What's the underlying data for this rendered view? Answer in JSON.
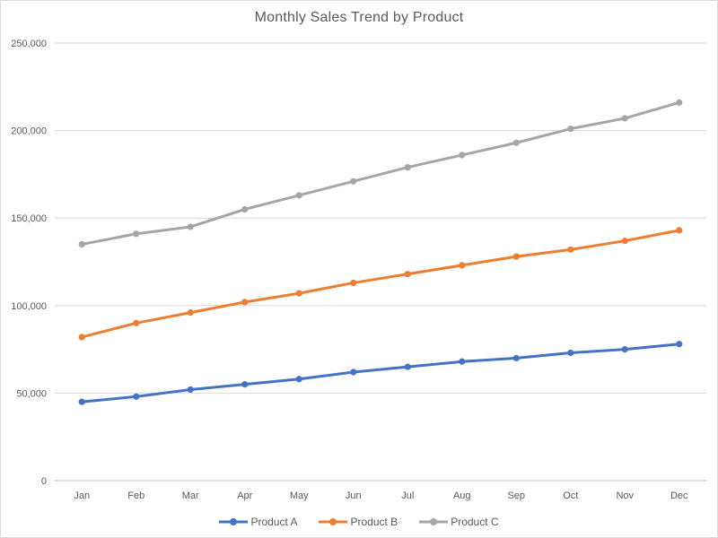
{
  "chart_data": {
    "type": "line",
    "title": "Monthly Sales Trend by Product",
    "xlabel": "",
    "ylabel": "",
    "categories": [
      "Jan",
      "Feb",
      "Mar",
      "Apr",
      "May",
      "Jun",
      "Jul",
      "Aug",
      "Sep",
      "Oct",
      "Nov",
      "Dec"
    ],
    "series": [
      {
        "name": "Product A",
        "color": "#4472C4",
        "values": [
          45000,
          48000,
          52000,
          55000,
          58000,
          62000,
          65000,
          68000,
          70000,
          73000,
          75000,
          78000
        ]
      },
      {
        "name": "Product B",
        "color": "#ED7D31",
        "values": [
          82000,
          90000,
          96000,
          102000,
          107000,
          113000,
          118000,
          123000,
          128000,
          132000,
          137000,
          143000
        ]
      },
      {
        "name": "Product C",
        "color": "#A5A5A5",
        "values": [
          135000,
          141000,
          145000,
          155000,
          163000,
          171000,
          179000,
          186000,
          193000,
          201000,
          207000,
          216000
        ]
      }
    ],
    "ylim": [
      0,
      250000
    ],
    "yticks": {
      "values": [
        0,
        50000,
        100000,
        150000,
        200000,
        250000
      ],
      "labels": [
        "0",
        "50,000",
        "100,000",
        "150,000",
        "200,000",
        "250,000"
      ]
    },
    "grid": "horizontal",
    "legend_position": "bottom-center",
    "marker": "circle",
    "line_width": 3
  },
  "colors": {
    "text": "#595959",
    "gridline": "#D9D9D9",
    "axis_line": "#BFBFBF",
    "background": "#FFFFFF",
    "border": "#D9D9D9"
  }
}
